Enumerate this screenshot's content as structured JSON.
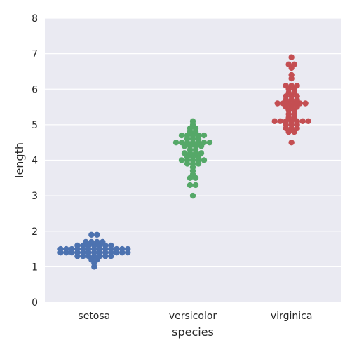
{
  "chart_data": {
    "type": "scatter",
    "subtype": "swarm",
    "title": "",
    "xlabel": "species",
    "ylabel": "length",
    "categories": [
      "setosa",
      "versicolor",
      "virginica"
    ],
    "ylim": [
      0,
      8
    ],
    "yticks": [
      0,
      1,
      2,
      3,
      4,
      5,
      6,
      7,
      8
    ],
    "grid": true,
    "background_color": "#EAEAF2",
    "grid_color": "#FFFFFF",
    "series": [
      {
        "category": "setosa",
        "color": "#4C72B0",
        "values": [
          1.0,
          1.1,
          1.2,
          1.2,
          1.3,
          1.3,
          1.3,
          1.3,
          1.3,
          1.3,
          1.3,
          1.4,
          1.4,
          1.4,
          1.4,
          1.4,
          1.4,
          1.4,
          1.4,
          1.4,
          1.4,
          1.4,
          1.4,
          1.4,
          1.5,
          1.5,
          1.5,
          1.5,
          1.5,
          1.5,
          1.5,
          1.5,
          1.5,
          1.5,
          1.5,
          1.5,
          1.5,
          1.6,
          1.6,
          1.6,
          1.6,
          1.6,
          1.6,
          1.6,
          1.7,
          1.7,
          1.7,
          1.7,
          1.9,
          1.9
        ]
      },
      {
        "category": "versicolor",
        "color": "#55A868",
        "values": [
          3.0,
          3.3,
          3.3,
          3.5,
          3.5,
          3.6,
          3.7,
          3.8,
          3.9,
          3.9,
          3.9,
          4.0,
          4.0,
          4.0,
          4.0,
          4.0,
          4.1,
          4.1,
          4.1,
          4.2,
          4.2,
          4.2,
          4.2,
          4.3,
          4.3,
          4.4,
          4.4,
          4.4,
          4.4,
          4.5,
          4.5,
          4.5,
          4.5,
          4.5,
          4.5,
          4.5,
          4.6,
          4.6,
          4.6,
          4.7,
          4.7,
          4.7,
          4.7,
          4.7,
          4.8,
          4.8,
          4.9,
          4.9,
          5.0,
          5.1
        ]
      },
      {
        "category": "virginica",
        "color": "#C44E52",
        "values": [
          4.5,
          4.8,
          4.8,
          4.9,
          4.9,
          4.9,
          5.0,
          5.0,
          5.0,
          5.1,
          5.1,
          5.1,
          5.1,
          5.1,
          5.1,
          5.1,
          5.2,
          5.2,
          5.3,
          5.3,
          5.4,
          5.4,
          5.5,
          5.5,
          5.5,
          5.6,
          5.6,
          5.6,
          5.6,
          5.6,
          5.6,
          5.7,
          5.7,
          5.7,
          5.8,
          5.8,
          5.8,
          5.9,
          5.9,
          6.0,
          6.0,
          6.1,
          6.1,
          6.1,
          6.3,
          6.4,
          6.6,
          6.7,
          6.7,
          6.9
        ]
      }
    ]
  }
}
